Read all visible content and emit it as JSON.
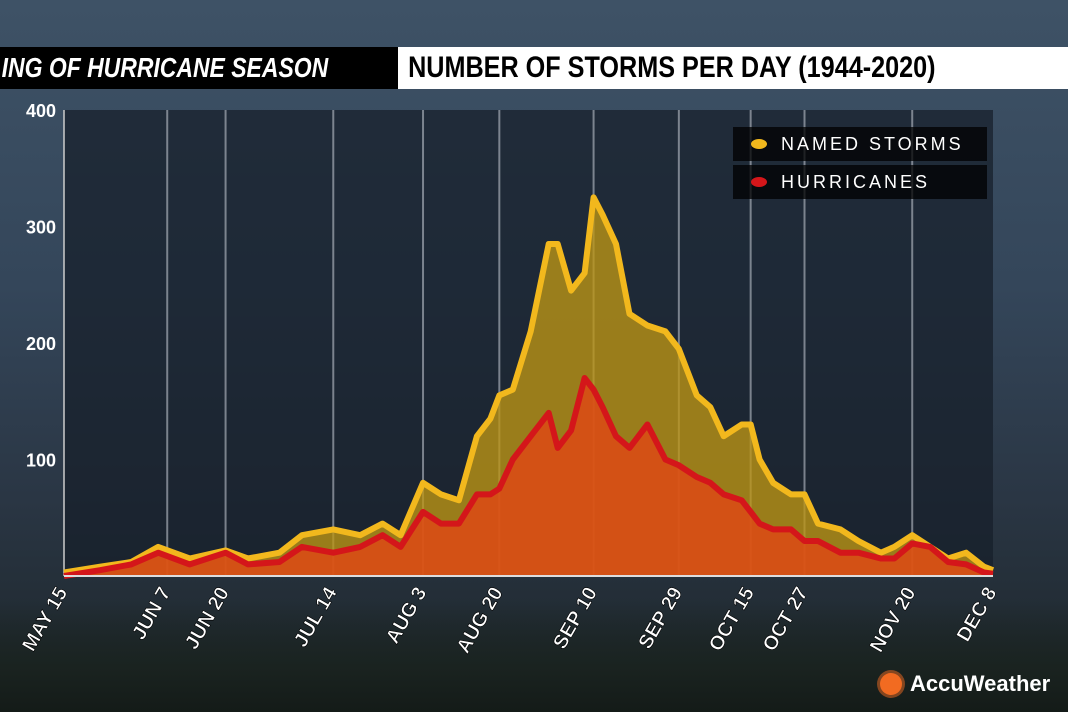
{
  "header": {
    "left_title": "ING OF HURRICANE SEASON",
    "right_title": "NUMBER OF STORMS PER DAY (1944-2020)"
  },
  "logo": {
    "text": "AccuWeather"
  },
  "chart_data": {
    "type": "area",
    "title": "NUMBER OF STORMS PER DAY (1944-2020)",
    "xlabel": "",
    "ylabel": "",
    "ylim": [
      0,
      400
    ],
    "yticks": [
      100,
      200,
      300,
      400
    ],
    "xlim": [
      "May 15",
      "Dec 8"
    ],
    "xticks": [
      "MAY 15",
      "JUN 7",
      "JUN 20",
      "JUL 14",
      "AUG 3",
      "AUG 20",
      "SEP 10",
      "SEP 29",
      "OCT 15",
      "OCT 27",
      "NOV 20",
      "DEC 8"
    ],
    "grid": "vertical lines at x ticks",
    "legend_position": "top-right",
    "x": [
      "May 15",
      "May 23",
      "May 30",
      "Jun 5",
      "Jun 12",
      "Jun 20",
      "Jun 25",
      "Jul 2",
      "Jul 7",
      "Jul 14",
      "Jul 20",
      "Jul 25",
      "Jul 29",
      "Aug 3",
      "Aug 7",
      "Aug 11",
      "Aug 15",
      "Aug 18",
      "Aug 20",
      "Aug 23",
      "Aug 27",
      "Aug 31",
      "Sep 2",
      "Sep 5",
      "Sep 8",
      "Sep 10",
      "Sep 12",
      "Sep 15",
      "Sep 18",
      "Sep 22",
      "Sep 26",
      "Sep 29",
      "Oct 3",
      "Oct 6",
      "Oct 9",
      "Oct 13",
      "Oct 15",
      "Oct 17",
      "Oct 20",
      "Oct 24",
      "Oct 27",
      "Oct 30",
      "Nov 4",
      "Nov 8",
      "Nov 13",
      "Nov 16",
      "Nov 20",
      "Nov 24",
      "Nov 28",
      "Dec 2",
      "Dec 6",
      "Dec 8"
    ],
    "series": [
      {
        "name": "NAMED STORMS",
        "color": "#f2b81d",
        "values": [
          3,
          8,
          12,
          25,
          15,
          22,
          15,
          20,
          35,
          40,
          35,
          45,
          35,
          80,
          70,
          65,
          120,
          135,
          155,
          160,
          210,
          285,
          285,
          245,
          260,
          325,
          310,
          285,
          225,
          215,
          210,
          195,
          155,
          145,
          120,
          130,
          130,
          100,
          80,
          70,
          70,
          45,
          40,
          30,
          20,
          25,
          35,
          25,
          15,
          20,
          8,
          5
        ]
      },
      {
        "name": "HURRICANES",
        "color": "#d4161a",
        "values": [
          0,
          5,
          10,
          20,
          10,
          20,
          10,
          12,
          25,
          20,
          25,
          35,
          25,
          55,
          45,
          45,
          70,
          70,
          75,
          100,
          120,
          140,
          110,
          125,
          170,
          160,
          145,
          120,
          110,
          130,
          100,
          95,
          85,
          80,
          70,
          65,
          55,
          45,
          40,
          40,
          30,
          30,
          20,
          20,
          15,
          15,
          28,
          25,
          12,
          10,
          3,
          2
        ]
      }
    ]
  }
}
